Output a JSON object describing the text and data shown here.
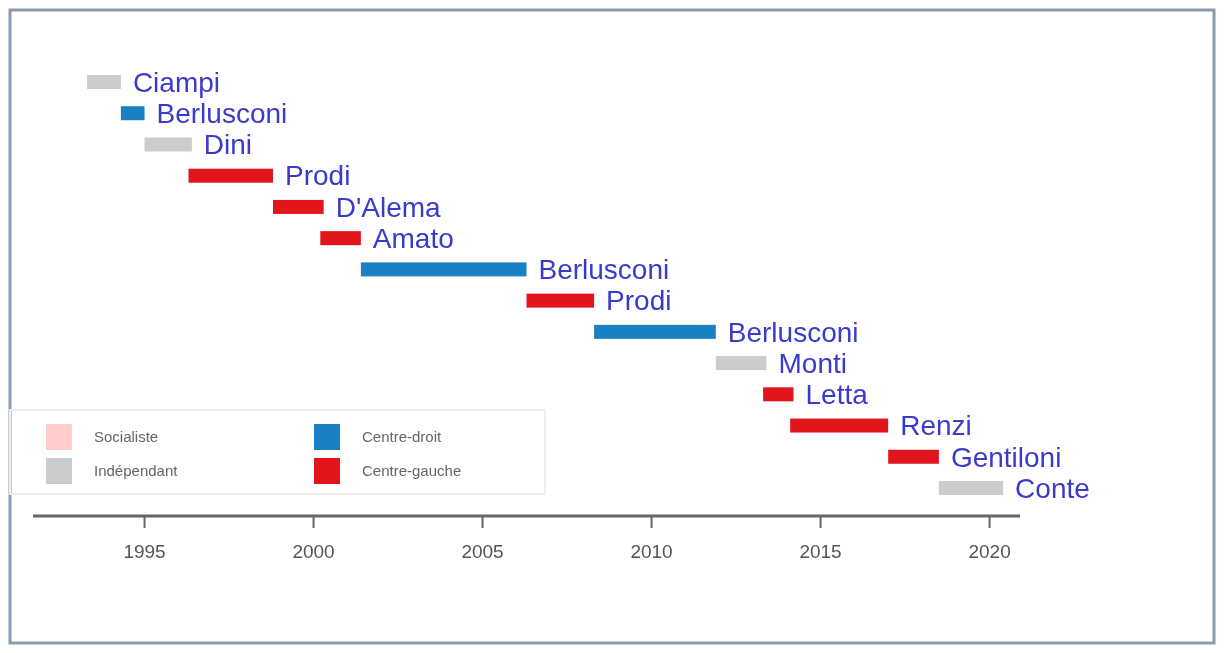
{
  "chart_data": {
    "type": "bar",
    "orientation": "horizontal",
    "categories": [
      "Ciampi",
      "Berlusconi",
      "Dini",
      "Prodi",
      "D'Alema",
      "Amato",
      "Berlusconi",
      "Prodi",
      "Berlusconi",
      "Monti",
      "Letta",
      "Renzi",
      "Gentiloni",
      "Conte"
    ],
    "series": [
      {
        "name": "Socialiste",
        "color": "#ffcccc",
        "values": [
          null,
          null,
          null,
          null,
          null,
          null,
          null,
          null,
          null,
          null,
          null,
          null,
          null,
          null
        ],
        "base": [
          null,
          null,
          null,
          null,
          null,
          null,
          null,
          null,
          null,
          null,
          null,
          null,
          null,
          null
        ]
      },
      {
        "name": "Indépendant",
        "color": "#cccccc",
        "values": [
          1.0,
          null,
          1.4,
          null,
          null,
          null,
          null,
          null,
          null,
          1.5,
          null,
          null,
          null,
          1.9
        ],
        "base": [
          1993.3,
          null,
          1995.0,
          null,
          null,
          null,
          null,
          null,
          null,
          2011.9,
          null,
          null,
          null,
          2018.5
        ]
      },
      {
        "name": "Centre-droit",
        "color": "#1a80c4",
        "values": [
          null,
          0.7,
          null,
          null,
          null,
          null,
          4.9,
          null,
          3.6,
          null,
          null,
          null,
          null,
          null
        ],
        "base": [
          null,
          1994.3,
          null,
          null,
          null,
          null,
          2001.4,
          null,
          2008.3,
          null,
          null,
          null,
          null,
          null
        ]
      },
      {
        "name": "Centre-gauche",
        "color": "#e0161c",
        "values": [
          null,
          null,
          null,
          2.5,
          1.5,
          1.2,
          null,
          2.0,
          null,
          null,
          0.9,
          2.9,
          1.5,
          null
        ],
        "base": [
          null,
          null,
          null,
          1996.3,
          1998.8,
          2000.2,
          null,
          2006.3,
          null,
          null,
          2013.3,
          2014.1,
          2017.0,
          null
        ]
      }
    ],
    "xlim": [
      1991.7,
      2020.9
    ],
    "xticks": [
      1995,
      2000,
      2005,
      2010,
      2015,
      2020
    ],
    "legend": "bottom left"
  }
}
